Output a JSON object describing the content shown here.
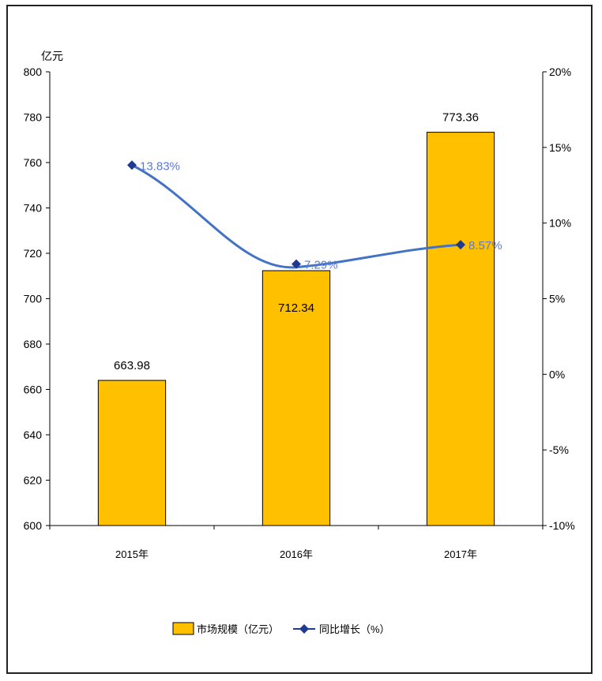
{
  "chart_data": {
    "type": "bar",
    "categories": [
      "2015年",
      "2016年",
      "2017年"
    ],
    "series": [
      {
        "name": "市场规模（亿元）",
        "kind": "bar",
        "axis": "left",
        "color": "#FFC000",
        "values": [
          663.98,
          712.34,
          773.36
        ],
        "labels": [
          "663.98",
          "712.34",
          "773.36"
        ]
      },
      {
        "name": "同比增长（%）",
        "kind": "line",
        "axis": "right",
        "color": "#4472C4",
        "marker_color": "#1F3A93",
        "values": [
          13.83,
          7.29,
          8.57
        ],
        "labels": [
          "13.83%",
          "7.29%",
          "8.57%"
        ]
      }
    ],
    "y_left": {
      "unit_label": "亿元",
      "ylim": [
        600,
        800
      ],
      "ticks": [
        "600",
        "620",
        "640",
        "660",
        "680",
        "700",
        "720",
        "740",
        "760",
        "780",
        "800"
      ]
    },
    "y_right": {
      "ylim": [
        -10,
        20
      ],
      "ticks": [
        "-10%",
        "-5%",
        "0%",
        "5%",
        "10%",
        "15%",
        "20%"
      ]
    },
    "grid": false,
    "legend_position": "bottom"
  }
}
